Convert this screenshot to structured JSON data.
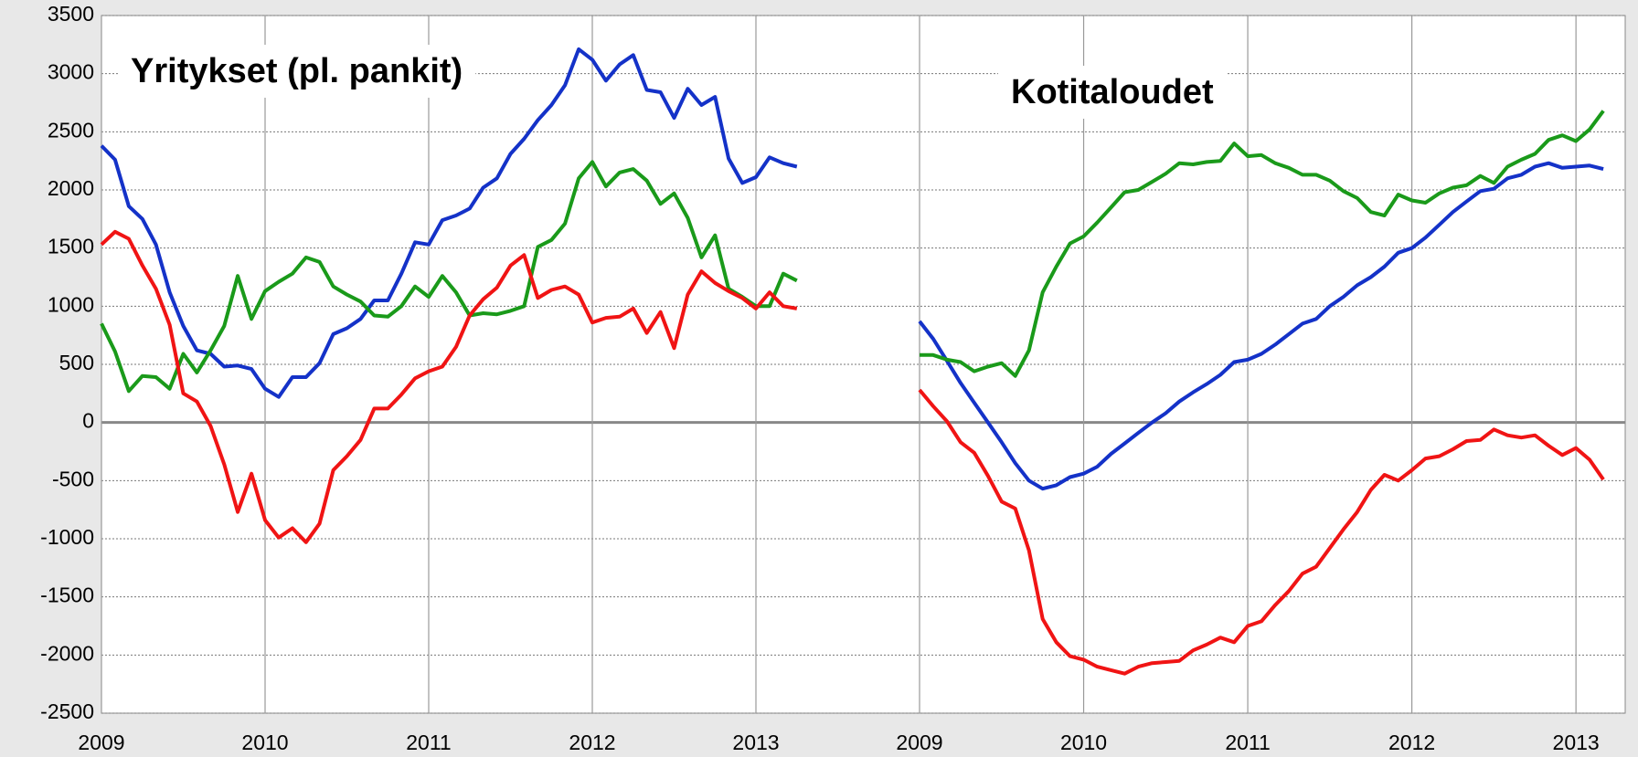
{
  "chart_data": [
    {
      "type": "line",
      "title": "Yritykset (pl. pankit)",
      "x": [
        2009.0,
        2009.083,
        2009.167,
        2009.25,
        2009.333,
        2009.417,
        2009.5,
        2009.583,
        2009.667,
        2009.75,
        2009.833,
        2009.917,
        2010.0,
        2010.083,
        2010.167,
        2010.25,
        2010.333,
        2010.417,
        2010.5,
        2010.583,
        2010.667,
        2010.75,
        2010.833,
        2010.917,
        2011.0,
        2011.083,
        2011.167,
        2011.25,
        2011.333,
        2011.417,
        2011.5,
        2011.583,
        2011.667,
        2011.75,
        2011.833,
        2011.917,
        2012.0,
        2012.083,
        2012.167,
        2012.25,
        2012.333,
        2012.417,
        2012.5,
        2012.583,
        2012.667,
        2012.75,
        2012.833,
        2012.917,
        2013.0,
        2013.083,
        2013.167,
        2013.25
      ],
      "series": [
        {
          "color": "#1432c8",
          "values": [
            2380,
            2260,
            1860,
            1750,
            1530,
            1120,
            830,
            620,
            590,
            480,
            490,
            460,
            290,
            220,
            390,
            390,
            510,
            760,
            810,
            890,
            1050,
            1050,
            1280,
            1550,
            1530,
            1740,
            1780,
            1840,
            2020,
            2100,
            2310,
            2440,
            2600,
            2730,
            2900,
            3210,
            3120,
            2940,
            3080,
            3160,
            2860,
            2840,
            2620,
            2870,
            2730,
            2800,
            2270,
            2060,
            2110,
            2280,
            2230,
            2200
          ]
        },
        {
          "color": "#1a9a1a",
          "values": [
            850,
            610,
            270,
            400,
            390,
            290,
            590,
            430,
            620,
            830,
            1260,
            890,
            1130,
            1210,
            1280,
            1420,
            1380,
            1170,
            1100,
            1040,
            920,
            910,
            1000,
            1170,
            1080,
            1260,
            1120,
            920,
            940,
            930,
            960,
            1000,
            1510,
            1570,
            1710,
            2100,
            2240,
            2030,
            2150,
            2180,
            2080,
            1880,
            1970,
            1760,
            1420,
            1610,
            1150,
            1080,
            1000,
            1000,
            1280,
            1220
          ]
        },
        {
          "color": "#f01414",
          "values": [
            1530,
            1640,
            1580,
            1350,
            1150,
            840,
            250,
            180,
            -30,
            -360,
            -770,
            -440,
            -840,
            -990,
            -910,
            -1030,
            -870,
            -410,
            -290,
            -150,
            120,
            120,
            240,
            380,
            440,
            480,
            650,
            920,
            1060,
            1160,
            1350,
            1440,
            1070,
            1140,
            1170,
            1100,
            860,
            900,
            910,
            980,
            770,
            950,
            640,
            1100,
            1300,
            1200,
            1130,
            1070,
            980,
            1120,
            1000,
            980
          ]
        }
      ],
      "xlim": [
        2009,
        2014
      ],
      "xticks": [
        2009,
        2010,
        2011,
        2012,
        2013
      ],
      "ylim": [
        -2500,
        3500
      ],
      "yticks": [
        -2500,
        -2000,
        -1500,
        -1000,
        -500,
        0,
        500,
        1000,
        1500,
        2000,
        2500,
        3000,
        3500
      ],
      "grid": true
    },
    {
      "type": "line",
      "title": "Kotitaloudet",
      "x": [
        2009.0,
        2009.083,
        2009.167,
        2009.25,
        2009.333,
        2009.417,
        2009.5,
        2009.583,
        2009.667,
        2009.75,
        2009.833,
        2009.917,
        2010.0,
        2010.083,
        2010.167,
        2010.25,
        2010.333,
        2010.417,
        2010.5,
        2010.583,
        2010.667,
        2010.75,
        2010.833,
        2010.917,
        2011.0,
        2011.083,
        2011.167,
        2011.25,
        2011.333,
        2011.417,
        2011.5,
        2011.583,
        2011.667,
        2011.75,
        2011.833,
        2011.917,
        2012.0,
        2012.083,
        2012.167,
        2012.25,
        2012.333,
        2012.417,
        2012.5,
        2012.583,
        2012.667,
        2012.75,
        2012.833,
        2012.917,
        2013.0,
        2013.083,
        2013.167
      ],
      "series": [
        {
          "color": "#1432c8",
          "values": [
            870,
            720,
            530,
            340,
            170,
            0,
            -170,
            -350,
            -500,
            -570,
            -540,
            -470,
            -440,
            -380,
            -270,
            -180,
            -90,
            0,
            80,
            180,
            260,
            330,
            410,
            520,
            540,
            590,
            670,
            760,
            850,
            890,
            1000,
            1080,
            1180,
            1250,
            1340,
            1460,
            1500,
            1590,
            1700,
            1810,
            1900,
            1990,
            2010,
            2100,
            2130,
            2200,
            2230,
            2190,
            2200,
            2210,
            2180
          ]
        },
        {
          "color": "#1a9a1a",
          "values": [
            580,
            580,
            540,
            520,
            440,
            480,
            510,
            400,
            620,
            1120,
            1340,
            1540,
            1600,
            1720,
            1850,
            1980,
            2000,
            2070,
            2140,
            2230,
            2220,
            2240,
            2250,
            2400,
            2290,
            2300,
            2230,
            2190,
            2130,
            2130,
            2080,
            1990,
            1930,
            1810,
            1780,
            1960,
            1910,
            1890,
            1970,
            2020,
            2040,
            2120,
            2060,
            2200,
            2260,
            2310,
            2430,
            2470,
            2420,
            2520,
            2680
          ]
        },
        {
          "color": "#f01414",
          "values": [
            280,
            140,
            10,
            -170,
            -260,
            -460,
            -680,
            -740,
            -1100,
            -1690,
            -1890,
            -2010,
            -2040,
            -2100,
            -2130,
            -2160,
            -2100,
            -2070,
            -2060,
            -2050,
            -1960,
            -1910,
            -1850,
            -1890,
            -1750,
            -1710,
            -1570,
            -1450,
            -1300,
            -1240,
            -1080,
            -920,
            -770,
            -580,
            -450,
            -500,
            -410,
            -310,
            -290,
            -230,
            -160,
            -150,
            -60,
            -110,
            -130,
            -110,
            -200,
            -280,
            -220,
            -320,
            -490
          ]
        }
      ],
      "xlim": [
        2009,
        2013.3
      ],
      "xticks": [
        2009,
        2010,
        2011,
        2012,
        2013
      ],
      "grid": true
    }
  ]
}
